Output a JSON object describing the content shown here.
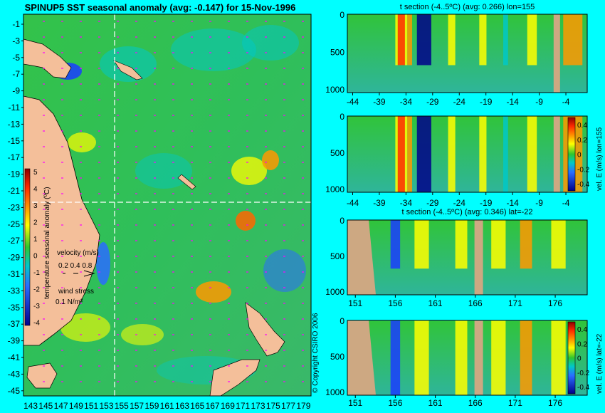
{
  "main_title": "SPINUP5 SST seasonal anomaly (avg: -0.147) for 15-Nov-1996",
  "copyright": "© Copyright CSIRO 2006",
  "colors": {
    "background": "#00ffff",
    "land": "#f4bf9a",
    "ocean_green": "#2ec62e",
    "vector": "#ff00ff",
    "crosshair": "#ffffff"
  },
  "map": {
    "lon_ticks": [
      "143",
      "145",
      "147",
      "149",
      "151",
      "153",
      "155",
      "157",
      "159",
      "161",
      "163",
      "165",
      "167",
      "169",
      "171",
      "173",
      "175",
      "177",
      "179"
    ],
    "lat_ticks": [
      "-1",
      "-3",
      "-5",
      "-7",
      "-9",
      "-11",
      "-13",
      "-15",
      "-17",
      "-19",
      "-21",
      "-23",
      "-25",
      "-27",
      "-29",
      "-31",
      "-33",
      "-35",
      "-37",
      "-39",
      "-41",
      "-43",
      "-45"
    ],
    "colorbar_label": "temperature seasonal anomaly (ºC)",
    "colorbar_ticks": [
      "5",
      "4",
      "3",
      "2",
      "1",
      "0",
      "-1",
      "-2",
      "-3",
      "-4"
    ],
    "velocity_label": "velocity (m/s)",
    "velocity_scale": "0.2 0.4 0.8",
    "wind_label": "wind stress",
    "wind_scale": "0.1 N/m²",
    "crosshair_lon": 155,
    "crosshair_lat": -22
  },
  "chart_data": [
    {
      "type": "heatmap",
      "title": "t section (-4..5ºC) (avg: 0.266) lon=155",
      "x_ticks": [
        "-44",
        "-39",
        "-34",
        "-29",
        "-24",
        "-19",
        "-14",
        "-9",
        "-4"
      ],
      "y_ticks": [
        "0",
        "500",
        "1000"
      ],
      "x_range": [
        -45,
        0
      ],
      "y_range": [
        0,
        1050
      ],
      "y_inverted": true
    },
    {
      "type": "heatmap",
      "title": "",
      "x_ticks": [
        "-44",
        "-39",
        "-34",
        "-29",
        "-24",
        "-19",
        "-14",
        "-9",
        "-4"
      ],
      "y_ticks": [
        "0",
        "500",
        "1000"
      ],
      "x_range": [
        -45,
        0
      ],
      "y_range": [
        0,
        1050
      ],
      "y_inverted": true,
      "colorbar_label": "vel. E (m/s) lon=155",
      "colorbar_ticks": [
        "0.4",
        "0.2",
        "0",
        "-0.2",
        "-0.4"
      ]
    },
    {
      "type": "heatmap",
      "title": "t section (-4..5ºC) (avg: 0.346) lat=-22",
      "x_ticks": [
        "151",
        "156",
        "161",
        "166",
        "171",
        "176"
      ],
      "y_ticks": [
        "0",
        "500",
        "1000"
      ],
      "x_range": [
        150,
        180
      ],
      "y_range": [
        0,
        1050
      ],
      "y_inverted": true
    },
    {
      "type": "heatmap",
      "title": "",
      "x_ticks": [
        "151",
        "156",
        "161",
        "166",
        "171",
        "176"
      ],
      "y_ticks": [
        "0",
        "500",
        "1000"
      ],
      "x_range": [
        150,
        180
      ],
      "y_range": [
        0,
        1050
      ],
      "y_inverted": true,
      "colorbar_label": "vel. E (m/s) lat=-22",
      "colorbar_ticks": [
        "0.4",
        "0.2",
        "0",
        "-0.2",
        "-0.4"
      ]
    }
  ]
}
